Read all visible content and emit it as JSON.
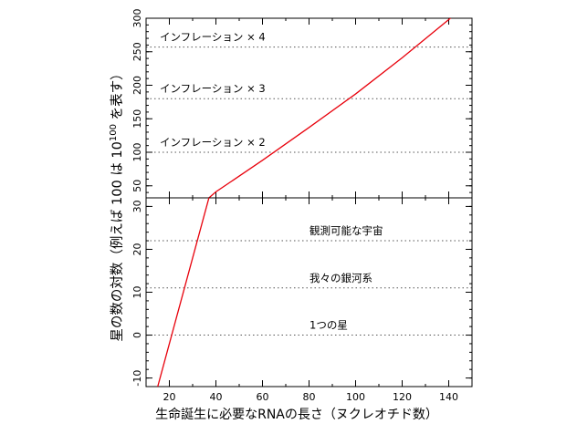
{
  "chart_data": {
    "type": "line",
    "xlabel": "生命誕生に必要なRNAの長さ（ヌクレオチド数）",
    "ylabel_main": "星の数の対数（例えば 100 は 10",
    "ylabel_sup": "100",
    "ylabel_tail": " を表す）",
    "xlim": [
      10,
      150
    ],
    "x_ticks": [
      20,
      40,
      60,
      80,
      100,
      120,
      140
    ],
    "x_minor_step": 10,
    "grid": false,
    "upper_panel": {
      "ylim": [
        32,
        300
      ],
      "y_ticks": [
        50,
        100,
        150,
        200,
        250,
        300
      ],
      "y_minor_step": 10,
      "reference_lines": [
        {
          "label": "インフレーション × 2",
          "y": 100
        },
        {
          "label": "インフレーション × 3",
          "y": 180
        },
        {
          "label": "インフレーション × 4",
          "y": 257
        }
      ]
    },
    "lower_panel": {
      "ylim": [
        -12,
        32
      ],
      "y_ticks": [
        -10,
        0,
        10,
        20,
        30
      ],
      "y_minor_step": 2,
      "reference_lines": [
        {
          "label": "1つの星",
          "y": 0
        },
        {
          "label": "我々の銀河系",
          "y": 11
        },
        {
          "label": "観測可能な宇宙",
          "y": 22
        }
      ]
    },
    "series": [
      {
        "color": "#e8000b",
        "lower_points": [
          [
            15,
            -12
          ],
          [
            37,
            32
          ]
        ],
        "upper_points": [
          [
            37,
            32
          ],
          [
            40,
            41
          ],
          [
            60,
            88
          ],
          [
            80,
            137
          ],
          [
            100,
            187
          ],
          [
            120,
            241
          ],
          [
            140,
            298
          ],
          [
            148,
            320
          ]
        ]
      }
    ]
  }
}
